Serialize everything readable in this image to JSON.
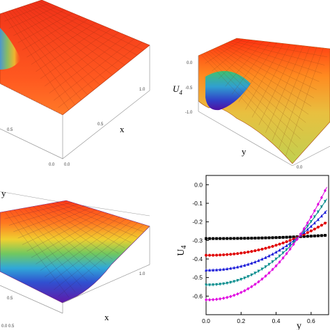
{
  "panels": {
    "top_left": {
      "x_axis_label": "x",
      "tick_a": "0.5",
      "tick_b": "0.0",
      "tick_c": "0.5",
      "tick_d": "1.0",
      "tick_e": "0.0"
    },
    "top_right": {
      "z_axis_label": "U4",
      "z_label_base": "U",
      "z_label_sub": "4",
      "y_axis_label": "y",
      "z_ticks": [
        "0.0",
        "-0.5",
        "-1.0"
      ],
      "corner_tick": "0.0"
    },
    "bottom_left": {
      "y_axis_label": "y",
      "x_axis_label": "x",
      "tick_a": "0.5",
      "tick_b": "0.0",
      "tick_c": "1.0",
      "corner_tick": "0.0 0.5"
    }
  },
  "chart_data": [
    {
      "type": "line",
      "ylabel": "U4",
      "ylabel_base": "U",
      "ylabel_sub": "4",
      "xlabel": "y",
      "xlim": [
        0.0,
        0.7
      ],
      "ylim": [
        -0.7,
        0.05
      ],
      "x_ticks": [
        "0.0",
        "0.2",
        "0.4",
        "0.6"
      ],
      "y_ticks": [
        "0.0",
        "-0.1",
        "-0.2",
        "-0.3",
        "-0.4",
        "-0.5",
        "-0.6"
      ],
      "grid": false,
      "series": [
        {
          "color": "#000000",
          "marker": "square",
          "a": -0.29,
          "b": 0.02
        },
        {
          "color": "#e00000",
          "marker": "circle",
          "a": -0.38,
          "b": 0.3
        },
        {
          "color": "#1a1ad8",
          "marker": "triangle-up",
          "a": -0.46,
          "b": 0.52
        },
        {
          "color": "#008b8b",
          "marker": "triangle-down",
          "a": -0.54,
          "b": 0.74
        },
        {
          "color": "#e000e0",
          "marker": "diamond",
          "a": -0.62,
          "b": 0.96
        }
      ]
    }
  ]
}
